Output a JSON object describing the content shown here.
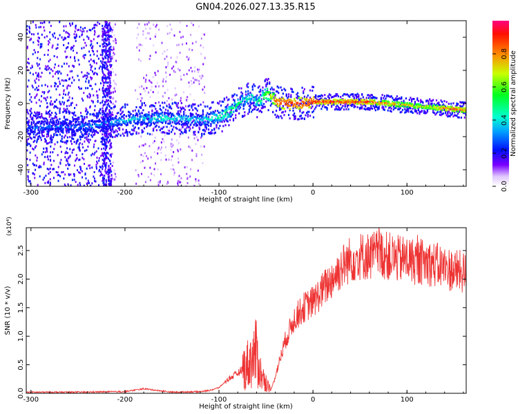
{
  "title": "GN04.2026.027.13.35.R15",
  "chart_data": [
    {
      "type": "heatmap",
      "xlabel": "Height of straight line (km)",
      "ylabel": "Frequency (Hz)",
      "xlim": [
        -305,
        163
      ],
      "ylim": [
        -50,
        50
      ],
      "xticks": [
        -300,
        -200,
        -100,
        0,
        100
      ],
      "yticks": [
        -40,
        -20,
        0,
        20,
        40
      ],
      "colorbar": {
        "label": "Normalized spectral amplitude",
        "range": [
          0.0,
          1.0
        ],
        "ticks": [
          0.0,
          0.2,
          0.4,
          0.6,
          0.8
        ]
      },
      "ridge": {
        "x": [
          -305,
          -280,
          -260,
          -240,
          -220,
          -200,
          -180,
          -160,
          -140,
          -120,
          -100,
          -90,
          -80,
          -70,
          -65,
          -60,
          -55,
          -50,
          -45,
          -40,
          -30,
          -20,
          -10,
          0,
          20,
          40,
          60,
          80,
          100,
          120,
          140,
          163
        ],
        "y": [
          -15,
          -14,
          -14,
          -14,
          -12,
          -10,
          -9,
          -9,
          -9,
          -10,
          -8,
          -5,
          0,
          3,
          5,
          0,
          3,
          6,
          4,
          1,
          0,
          0,
          0,
          1,
          1,
          1,
          1,
          0,
          -1,
          -2,
          -3,
          -4
        ],
        "amplitude": [
          0.35,
          0.35,
          0.35,
          0.4,
          0.4,
          0.45,
          0.45,
          0.5,
          0.45,
          0.45,
          0.55,
          0.6,
          0.55,
          0.5,
          0.5,
          0.55,
          0.6,
          0.7,
          0.75,
          0.9,
          0.95,
          0.95,
          0.95,
          0.95,
          0.95,
          0.95,
          0.95,
          0.85,
          0.8,
          0.75,
          0.9,
          0.9
        ]
      }
    },
    {
      "type": "line",
      "xlabel": "Height of straight line (km)",
      "ylabel": "SNR (10 * v/v)",
      "scale_label": "(x10⁴)",
      "xlim": [
        -305,
        163
      ],
      "ylim": [
        0,
        2.9
      ],
      "xticks": [
        -300,
        -200,
        -100,
        0,
        100
      ],
      "yticks": [
        0.0,
        0.5,
        1.0,
        1.5,
        2.0,
        2.5
      ],
      "series": [
        {
          "color": "#ee3333",
          "x": [
            -305,
            -250,
            -200,
            -180,
            -150,
            -120,
            -110,
            -100,
            -90,
            -80,
            -70,
            -60,
            -55,
            -50,
            -45,
            -40,
            -35,
            -30,
            -20,
            -10,
            0,
            10,
            20,
            30,
            40,
            50,
            60,
            70,
            80,
            90,
            100,
            110,
            120,
            130,
            140,
            150,
            163
          ],
          "y": [
            0.02,
            0.02,
            0.03,
            0.08,
            0.02,
            0.03,
            0.05,
            0.1,
            0.25,
            0.35,
            0.5,
            0.7,
            0.3,
            0.2,
            0.05,
            0.3,
            0.6,
            0.9,
            1.3,
            1.5,
            1.6,
            1.8,
            2.0,
            2.2,
            2.35,
            2.4,
            2.4,
            2.45,
            2.4,
            2.35,
            2.35,
            2.3,
            2.3,
            2.25,
            2.2,
            2.15,
            2.1
          ]
        }
      ]
    }
  ]
}
